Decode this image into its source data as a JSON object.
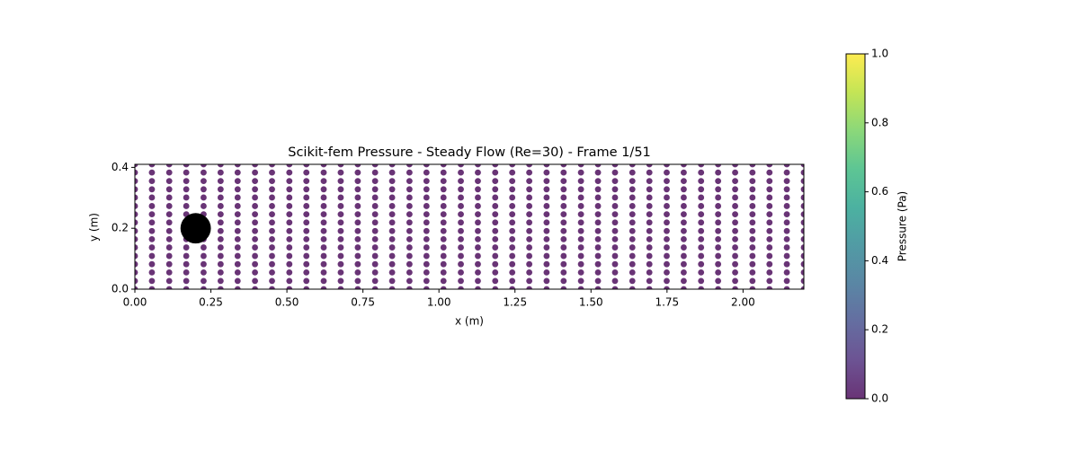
{
  "chart_data": {
    "type": "scatter",
    "title": "Scikit-fem Pressure - Steady Flow (Re=30) - Frame 1/51",
    "x_label": "x (m)",
    "y_label": "y (m)",
    "x": [
      0,
      0.056,
      0.113,
      0.169,
      0.226,
      0.282,
      0.338,
      0.395,
      0.451,
      0.508,
      0.564,
      0.621,
      0.677,
      0.733,
      0.79,
      0.846,
      0.903,
      0.959,
      1.015,
      1.072,
      1.128,
      1.185,
      1.241,
      1.297,
      1.354,
      1.41,
      1.467,
      1.523,
      1.579,
      1.636,
      1.692,
      1.749,
      1.805,
      1.862,
      1.918,
      1.974,
      2.031,
      2.087,
      2.144,
      2.2
    ],
    "y": [
      0,
      0.027,
      0.055,
      0.082,
      0.109,
      0.137,
      0.164,
      0.191,
      0.219,
      0.246,
      0.273,
      0.301,
      0.328,
      0.355,
      0.383,
      0.41
    ],
    "values": [
      [
        0,
        0,
        0,
        0,
        0,
        0,
        0,
        0,
        0,
        0,
        0,
        0,
        0,
        0,
        0,
        0,
        0,
        0,
        0,
        0,
        0,
        0,
        0,
        0,
        0,
        0,
        0,
        0,
        0,
        0,
        0,
        0,
        0,
        0,
        0,
        0,
        0,
        0,
        0,
        0
      ],
      [
        0,
        0,
        0,
        0,
        0,
        0,
        0,
        0,
        0,
        0,
        0,
        0,
        0,
        0,
        0,
        0,
        0,
        0,
        0,
        0,
        0,
        0,
        0,
        0,
        0,
        0,
        0,
        0,
        0,
        0,
        0,
        0,
        0,
        0,
        0,
        0,
        0,
        0,
        0,
        0
      ],
      [
        0,
        0,
        0,
        0,
        0,
        0,
        0,
        0,
        0,
        0,
        0,
        0,
        0,
        0,
        0,
        0,
        0,
        0,
        0,
        0,
        0,
        0,
        0,
        0,
        0,
        0,
        0,
        0,
        0,
        0,
        0,
        0,
        0,
        0,
        0,
        0,
        0,
        0,
        0,
        0
      ],
      [
        0,
        0,
        0,
        0,
        0,
        0,
        0,
        0,
        0,
        0,
        0,
        0,
        0,
        0,
        0,
        0,
        0,
        0,
        0,
        0,
        0,
        0,
        0,
        0,
        0,
        0,
        0,
        0,
        0,
        0,
        0,
        0,
        0,
        0,
        0,
        0,
        0,
        0,
        0,
        0
      ],
      [
        0,
        0,
        0,
        0,
        0,
        0,
        0,
        0,
        0,
        0,
        0,
        0,
        0,
        0,
        0,
        0,
        0,
        0,
        0,
        0,
        0,
        0,
        0,
        0,
        0,
        0,
        0,
        0,
        0,
        0,
        0,
        0,
        0,
        0,
        0,
        0,
        0,
        0,
        0,
        0
      ],
      [
        0,
        0,
        0,
        0,
        0,
        0,
        0,
        0,
        0,
        0,
        0,
        0,
        0,
        0,
        0,
        0,
        0,
        0,
        0,
        0,
        0,
        0,
        0,
        0,
        0,
        0,
        0,
        0,
        0,
        0,
        0,
        0,
        0,
        0,
        0,
        0,
        0,
        0,
        0,
        0
      ],
      [
        0,
        0,
        0,
        0,
        0,
        0,
        0,
        0,
        0,
        0,
        0,
        0,
        0,
        0,
        0,
        0,
        0,
        0,
        0,
        0,
        0,
        0,
        0,
        0,
        0,
        0,
        0,
        0,
        0,
        0,
        0,
        0,
        0,
        0,
        0,
        0,
        0,
        0,
        0,
        0
      ],
      [
        0,
        0,
        0,
        0,
        0,
        0,
        0,
        0,
        0,
        0,
        0,
        0,
        0,
        0,
        0,
        0,
        0,
        0,
        0,
        0,
        0,
        0,
        0,
        0,
        0,
        0,
        0,
        0,
        0,
        0,
        0,
        0,
        0,
        0,
        0,
        0,
        0,
        0,
        0,
        0
      ],
      [
        0,
        0,
        0,
        0,
        0,
        0,
        0,
        0,
        0,
        0,
        0,
        0,
        0,
        0,
        0,
        0,
        0,
        0,
        0,
        0,
        0,
        0,
        0,
        0,
        0,
        0,
        0,
        0,
        0,
        0,
        0,
        0,
        0,
        0,
        0,
        0,
        0,
        0,
        0,
        0
      ],
      [
        0,
        0,
        0,
        0,
        0,
        0,
        0,
        0,
        0,
        0,
        0,
        0,
        0,
        0,
        0,
        0,
        0,
        0,
        0,
        0,
        0,
        0,
        0,
        0,
        0,
        0,
        0,
        0,
        0,
        0,
        0,
        0,
        0,
        0,
        0,
        0,
        0,
        0,
        0,
        0
      ],
      [
        0,
        0,
        0,
        0,
        0,
        0,
        0,
        0,
        0,
        0,
        0,
        0,
        0,
        0,
        0,
        0,
        0,
        0,
        0,
        0,
        0,
        0,
        0,
        0,
        0,
        0,
        0,
        0,
        0,
        0,
        0,
        0,
        0,
        0,
        0,
        0,
        0,
        0,
        0,
        0
      ],
      [
        0,
        0,
        0,
        0,
        0,
        0,
        0,
        0,
        0,
        0,
        0,
        0,
        0,
        0,
        0,
        0,
        0,
        0,
        0,
        0,
        0,
        0,
        0,
        0,
        0,
        0,
        0,
        0,
        0,
        0,
        0,
        0,
        0,
        0,
        0,
        0,
        0,
        0,
        0,
        0
      ],
      [
        0,
        0,
        0,
        0,
        0,
        0,
        0,
        0,
        0,
        0,
        0,
        0,
        0,
        0,
        0,
        0,
        0,
        0,
        0,
        0,
        0,
        0,
        0,
        0,
        0,
        0,
        0,
        0,
        0,
        0,
        0,
        0,
        0,
        0,
        0,
        0,
        0,
        0,
        0,
        0
      ],
      [
        0,
        0,
        0,
        0,
        0,
        0,
        0,
        0,
        0,
        0,
        0,
        0,
        0,
        0,
        0,
        0,
        0,
        0,
        0,
        0,
        0,
        0,
        0,
        0,
        0,
        0,
        0,
        0,
        0,
        0,
        0,
        0,
        0,
        0,
        0,
        0,
        0,
        0,
        0,
        0
      ],
      [
        0,
        0,
        0,
        0,
        0,
        0,
        0,
        0,
        0,
        0,
        0,
        0,
        0,
        0,
        0,
        0,
        0,
        0,
        0,
        0,
        0,
        0,
        0,
        0,
        0,
        0,
        0,
        0,
        0,
        0,
        0,
        0,
        0,
        0,
        0,
        0,
        0,
        0,
        0,
        0
      ],
      [
        0,
        0,
        0,
        0,
        0,
        0,
        0,
        0,
        0,
        0,
        0,
        0,
        0,
        0,
        0,
        0,
        0,
        0,
        0,
        0,
        0,
        0,
        0,
        0,
        0,
        0,
        0,
        0,
        0,
        0,
        0,
        0,
        0,
        0,
        0,
        0,
        0,
        0,
        0,
        0
      ]
    ],
    "xlim": [
      0,
      2.2
    ],
    "ylim": [
      0,
      0.41
    ],
    "xticks": [
      {
        "value": 0,
        "label": "0.00"
      },
      {
        "value": 0.25,
        "label": "0.25"
      },
      {
        "value": 0.5,
        "label": "0.50"
      },
      {
        "value": 0.75,
        "label": "0.75"
      },
      {
        "value": 1,
        "label": "1.00"
      },
      {
        "value": 1.25,
        "label": "1.25"
      },
      {
        "value": 1.5,
        "label": "1.50"
      },
      {
        "value": 1.75,
        "label": "1.75"
      },
      {
        "value": 2,
        "label": "2.00"
      }
    ],
    "yticks": [
      {
        "value": 0,
        "label": "0.0"
      },
      {
        "value": 0.2,
        "label": "0.2"
      },
      {
        "value": 0.4,
        "label": "0.4"
      }
    ],
    "obstacle": {
      "center": [
        0.2,
        0.2
      ],
      "radius": 0.05,
      "color": "#000000"
    },
    "colormap": [
      "#440154",
      "#482878",
      "#3e4989",
      "#31688e",
      "#26828e",
      "#1f9e89",
      "#35b779",
      "#6ece58",
      "#b5de2b",
      "#fde725"
    ],
    "alpha": 0.8,
    "colorbar": {
      "label": "Pressure (Pa)",
      "lim": [
        0,
        1
      ],
      "ticks": [
        {
          "value": 0,
          "label": "0.0"
        },
        {
          "value": 0.2,
          "label": "0.2"
        },
        {
          "value": 0.4,
          "label": "0.4"
        },
        {
          "value": 0.6,
          "label": "0.6"
        },
        {
          "value": 0.8,
          "label": "0.8"
        },
        {
          "value": 1,
          "label": "1.0"
        }
      ]
    }
  }
}
